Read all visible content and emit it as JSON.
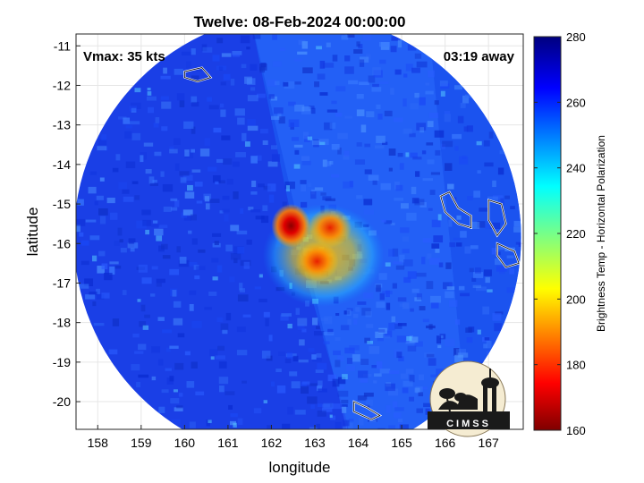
{
  "chart_data": {
    "type": "heatmap",
    "title": "Twelve: 08-Feb-2024 00:00:00",
    "xlabel": "longitude",
    "ylabel": "latitude",
    "xlim": [
      157.5,
      167.8
    ],
    "ylim": [
      -20.7,
      -10.7
    ],
    "xticks": [
      "158",
      "159",
      "160",
      "161",
      "162",
      "163",
      "164",
      "165",
      "166",
      "167"
    ],
    "yticks": [
      "-11",
      "-12",
      "-13",
      "-14",
      "-15",
      "-16",
      "-17",
      "-18",
      "-19",
      "-20"
    ],
    "grid": true,
    "annotations": {
      "vmax": "Vmax: 35 kts",
      "away": "03:19 away"
    },
    "colorbar": {
      "label": "Brightness Temp - Horizontal Polarization",
      "range": [
        160,
        280
      ],
      "ticks": [
        "280",
        "260",
        "240",
        "220",
        "200",
        "180",
        "160"
      ],
      "colormap": "jet"
    },
    "swath": {
      "center_lon": 162.6,
      "center_lat": -15.85,
      "radius_deg": 5.15
    },
    "cold_core": {
      "lon": 162.9,
      "lat": -16.0,
      "min_temp": 168,
      "features": [
        {
          "lon": 162.45,
          "lat": -15.55,
          "temp": 168
        },
        {
          "lon": 163.35,
          "lat": -15.6,
          "temp": 185
        },
        {
          "lon": 163.05,
          "lat": -16.45,
          "temp": 195
        }
      ]
    },
    "background_temp": 268
  },
  "logo": {
    "text": "CIMSS"
  },
  "colors": {
    "land_outline": "#ffffff",
    "coast_outline": "#000000"
  }
}
